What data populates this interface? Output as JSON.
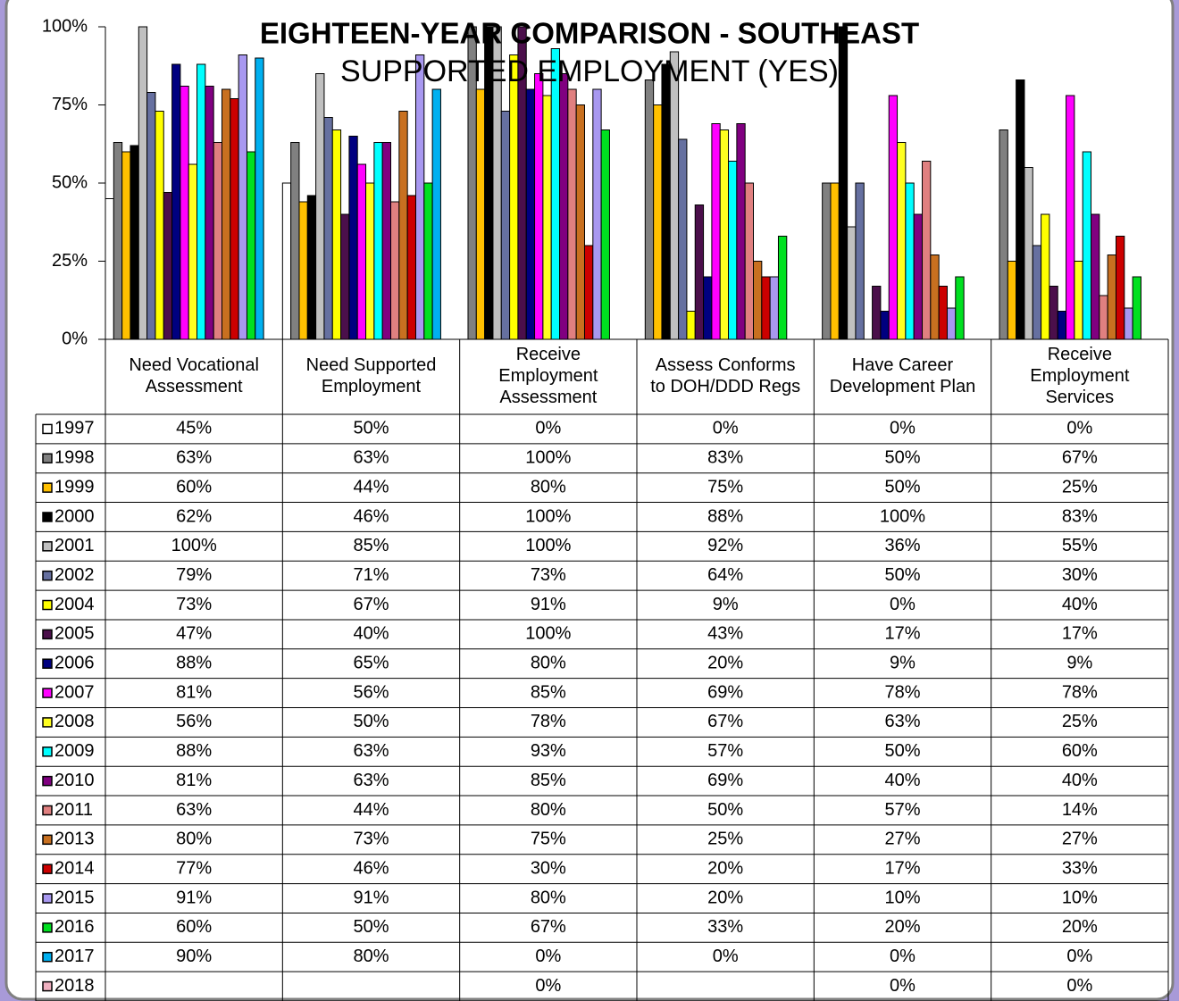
{
  "chart_data": {
    "type": "bar",
    "title": "EIGHTEEN-YEAR COMPARISON - SOUTHEAST",
    "subtitle": "SUPPORTED EMPLOYMENT (YES)",
    "categories": [
      "Need Vocational\nAssessment",
      "Need Supported\nEmployment",
      "Receive\nEmployment\nAssessment",
      "Assess Conforms\nto DOH/DDD Regs",
      "Have Career\nDevelopment Plan",
      "Receive\nEmployment\nServices"
    ],
    "ylim": [
      0,
      100
    ],
    "yticks": [
      {
        "value": 0,
        "label": "0%"
      },
      {
        "value": 25,
        "label": "25%"
      },
      {
        "value": 50,
        "label": "50%"
      },
      {
        "value": 75,
        "label": "75%"
      },
      {
        "value": 100,
        "label": "100%"
      }
    ],
    "grid": false,
    "legend": "table",
    "series": [
      {
        "name": "1997",
        "color": "#ffffff",
        "values": [
          45,
          50,
          0,
          0,
          0,
          0
        ],
        "value_labels": [
          "45%",
          "50%",
          "0%",
          "0%",
          "0%",
          "0%"
        ]
      },
      {
        "name": "1998",
        "color": "#808080",
        "values": [
          63,
          63,
          100,
          83,
          50,
          67
        ],
        "value_labels": [
          "63%",
          "63%",
          "100%",
          "83%",
          "50%",
          "67%"
        ]
      },
      {
        "name": "1999",
        "color": "#ffc000",
        "values": [
          60,
          44,
          80,
          75,
          50,
          25
        ],
        "value_labels": [
          "60%",
          "44%",
          "80%",
          "75%",
          "50%",
          "25%"
        ]
      },
      {
        "name": "2000",
        "color": "#000000",
        "values": [
          62,
          46,
          100,
          88,
          100,
          83
        ],
        "value_labels": [
          "62%",
          "46%",
          "100%",
          "88%",
          "100%",
          "83%"
        ]
      },
      {
        "name": "2001",
        "color": "#c0c0c0",
        "values": [
          100,
          85,
          100,
          92,
          36,
          55
        ],
        "value_labels": [
          "100%",
          "85%",
          "100%",
          "92%",
          "36%",
          "55%"
        ]
      },
      {
        "name": "2002",
        "color": "#6670a0",
        "values": [
          79,
          71,
          73,
          64,
          50,
          30
        ],
        "value_labels": [
          "79%",
          "71%",
          "73%",
          "64%",
          "50%",
          "30%"
        ]
      },
      {
        "name": "2004",
        "color": "#ffff00",
        "values": [
          73,
          67,
          91,
          9,
          0,
          40
        ],
        "value_labels": [
          "73%",
          "67%",
          "91%",
          "9%",
          "0%",
          "40%"
        ]
      },
      {
        "name": "2005",
        "color": "#4b0f4b",
        "values": [
          47,
          40,
          100,
          43,
          17,
          17
        ],
        "value_labels": [
          "47%",
          "40%",
          "100%",
          "43%",
          "17%",
          "17%"
        ]
      },
      {
        "name": "2006",
        "color": "#000080",
        "values": [
          88,
          65,
          80,
          20,
          9,
          9
        ],
        "value_labels": [
          "88%",
          "65%",
          "80%",
          "20%",
          "9%",
          "9%"
        ]
      },
      {
        "name": "2007",
        "color": "#ff00ff",
        "values": [
          81,
          56,
          85,
          69,
          78,
          78
        ],
        "value_labels": [
          "81%",
          "56%",
          "85%",
          "69%",
          "78%",
          "78%"
        ]
      },
      {
        "name": "2008",
        "color": "#ffff20",
        "values": [
          56,
          50,
          78,
          67,
          63,
          25
        ],
        "value_labels": [
          "56%",
          "50%",
          "78%",
          "67%",
          "63%",
          "25%"
        ]
      },
      {
        "name": "2009",
        "color": "#00ffff",
        "values": [
          88,
          63,
          93,
          57,
          50,
          60
        ],
        "value_labels": [
          "88%",
          "63%",
          "93%",
          "57%",
          "50%",
          "60%"
        ]
      },
      {
        "name": "2010",
        "color": "#800080",
        "values": [
          81,
          63,
          85,
          69,
          40,
          40
        ],
        "value_labels": [
          "81%",
          "63%",
          "85%",
          "69%",
          "40%",
          "40%"
        ]
      },
      {
        "name": "2011",
        "color": "#e08080",
        "values": [
          63,
          44,
          80,
          50,
          57,
          14
        ],
        "value_labels": [
          "63%",
          "44%",
          "80%",
          "50%",
          "57%",
          "14%"
        ]
      },
      {
        "name": "2013",
        "color": "#c87020",
        "values": [
          80,
          73,
          75,
          25,
          27,
          27
        ],
        "value_labels": [
          "80%",
          "73%",
          "75%",
          "25%",
          "27%",
          "27%"
        ]
      },
      {
        "name": "2014",
        "color": "#cc0000",
        "values": [
          77,
          46,
          30,
          20,
          17,
          33
        ],
        "value_labels": [
          "77%",
          "46%",
          "30%",
          "20%",
          "17%",
          "33%"
        ]
      },
      {
        "name": "2015",
        "color": "#a898f0",
        "values": [
          91,
          91,
          80,
          20,
          10,
          10
        ],
        "value_labels": [
          "91%",
          "91%",
          "80%",
          "20%",
          "10%",
          "10%"
        ]
      },
      {
        "name": "2016",
        "color": "#00e020",
        "values": [
          60,
          50,
          67,
          33,
          20,
          20
        ],
        "value_labels": [
          "60%",
          "50%",
          "67%",
          "33%",
          "20%",
          "20%"
        ]
      },
      {
        "name": "2017",
        "color": "#00b0f0",
        "values": [
          90,
          80,
          0,
          0,
          0,
          0
        ],
        "value_labels": [
          "90%",
          "80%",
          "0%",
          "0%",
          "0%",
          "0%"
        ]
      },
      {
        "name": "2018",
        "color": "#f0b0c0",
        "values": [
          null,
          null,
          0,
          null,
          0,
          0
        ],
        "value_labels": [
          null,
          null,
          "0%",
          null,
          "0%",
          "0%"
        ]
      }
    ]
  }
}
